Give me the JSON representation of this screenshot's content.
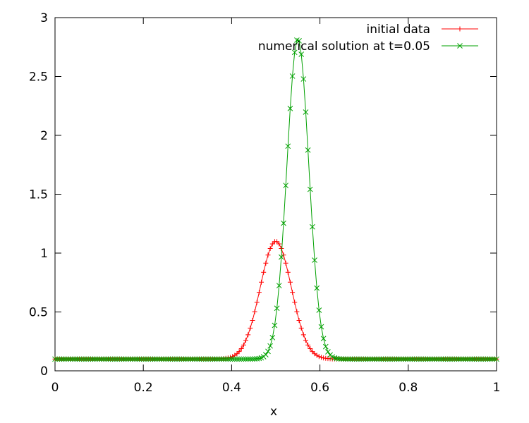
{
  "chart_data": {
    "type": "line",
    "title": "",
    "xlabel": "x",
    "ylabel": "",
    "xlim": [
      0,
      1
    ],
    "ylim": [
      0,
      3
    ],
    "xticks": [
      "0",
      "0.2",
      "0.4",
      "0.6",
      "0.8",
      "1"
    ],
    "yticks": [
      "0",
      "0.5",
      "1",
      "1.5",
      "2",
      "2.5",
      "3"
    ],
    "grid": false,
    "legend_position": "top-right",
    "n_points": 200,
    "series": [
      {
        "name": "initial data",
        "color": "#ff0000",
        "marker": "plus",
        "shape": "gaussian",
        "baseline": 0.1,
        "amplitude": 1.0,
        "center": 0.5,
        "width": 0.05
      },
      {
        "name": "numerical solution at t=0.05",
        "color": "#00a000",
        "marker": "cross",
        "shape": "gaussian",
        "baseline": 0.1,
        "amplitude": 2.72,
        "center": 0.55,
        "width": 0.035
      }
    ]
  }
}
